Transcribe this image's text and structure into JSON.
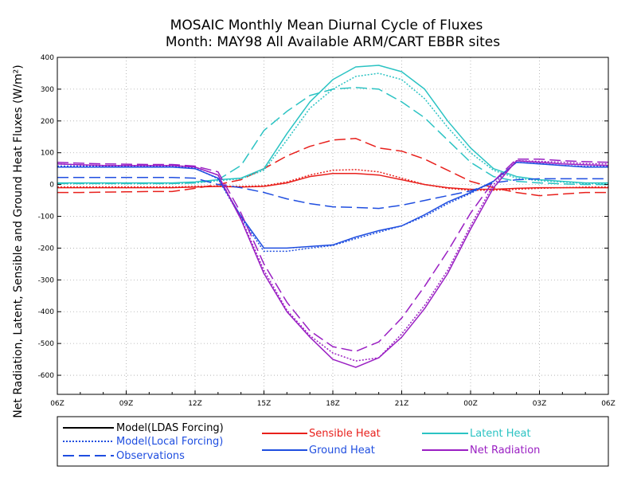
{
  "chart_data": {
    "type": "line",
    "title": "MOSAIC Monthly Mean Diurnal Cycle of Fluxes",
    "subtitle": "Month: MAY98 All Available ARM/CART EBBR sites",
    "ylabel": "Net Radiation, Latent, Sensible and Ground Heat Fluxes (W/m²)",
    "xlabel": "",
    "ylim": [
      -660,
      400
    ],
    "yticks": [
      400,
      300,
      200,
      100,
      0,
      -100,
      -200,
      -300,
      -400,
      -500,
      -600
    ],
    "xlim": [
      0,
      24
    ],
    "xticks": [
      0,
      3,
      6,
      9,
      12,
      15,
      18,
      21,
      24
    ],
    "xtick_labels": [
      "06Z",
      "09Z",
      "12Z",
      "15Z",
      "18Z",
      "21Z",
      "00Z",
      "03Z",
      "06Z"
    ],
    "grid": true,
    "x": [
      0,
      1,
      2,
      3,
      4,
      5,
      6,
      7,
      8,
      9,
      10,
      11,
      12,
      13,
      14,
      15,
      16,
      17,
      18,
      19,
      20,
      21,
      22,
      23,
      24
    ],
    "variables": [
      {
        "name": "Sensible Heat",
        "color": "#e8201c"
      },
      {
        "name": "Latent Heat",
        "color": "#2bc3c3"
      },
      {
        "name": "Ground Heat",
        "color": "#1f4ee0"
      },
      {
        "name": "Net Radiation",
        "color": "#9a1fc3"
      }
    ],
    "sources": [
      {
        "name": "Model(LDAS Forcing)",
        "style": "solid"
      },
      {
        "name": "Model(Local Forcing)",
        "style": "dotted"
      },
      {
        "name": "Observations",
        "style": "dashed"
      }
    ],
    "series": [
      {
        "variable": "Sensible Heat",
        "source": "Model(LDAS Forcing)",
        "values": [
          -10,
          -10,
          -10,
          -10,
          -10,
          -10,
          -8,
          -6,
          -8,
          -6,
          5,
          25,
          35,
          35,
          30,
          15,
          0,
          -10,
          -15,
          -15,
          -12,
          -10,
          -10,
          -10,
          -10
        ]
      },
      {
        "variable": "Sensible Heat",
        "source": "Model(Local Forcing)",
        "values": [
          -8,
          -8,
          -8,
          -8,
          -8,
          -8,
          -6,
          -5,
          -6,
          -4,
          8,
          30,
          45,
          47,
          40,
          20,
          0,
          -12,
          -18,
          -18,
          -15,
          -12,
          -10,
          -8,
          -8
        ]
      },
      {
        "variable": "Sensible Heat",
        "source": "Observations",
        "values": [
          -25,
          -25,
          -24,
          -23,
          -22,
          -22,
          -12,
          0,
          15,
          50,
          90,
          120,
          140,
          145,
          115,
          105,
          80,
          45,
          10,
          -10,
          -25,
          -35,
          -30,
          -25,
          -25
        ]
      },
      {
        "variable": "Latent Heat",
        "source": "Model(LDAS Forcing)",
        "values": [
          5,
          5,
          5,
          5,
          5,
          5,
          8,
          15,
          20,
          50,
          160,
          260,
          330,
          370,
          375,
          355,
          300,
          200,
          115,
          50,
          25,
          15,
          10,
          5,
          5
        ]
      },
      {
        "variable": "Latent Heat",
        "source": "Model(Local Forcing)",
        "values": [
          3,
          3,
          3,
          3,
          3,
          3,
          5,
          12,
          18,
          45,
          140,
          240,
          300,
          340,
          350,
          330,
          270,
          180,
          100,
          45,
          20,
          12,
          8,
          3,
          3
        ]
      },
      {
        "variable": "Latent Heat",
        "source": "Observations",
        "values": [
          3,
          3,
          3,
          3,
          3,
          3,
          5,
          15,
          60,
          170,
          230,
          280,
          300,
          305,
          300,
          260,
          210,
          140,
          70,
          25,
          10,
          5,
          2,
          0,
          0
        ]
      },
      {
        "variable": "Ground Heat",
        "source": "Model(LDAS Forcing)",
        "values": [
          55,
          55,
          55,
          55,
          55,
          55,
          50,
          20,
          -100,
          -200,
          -200,
          -195,
          -190,
          -165,
          -145,
          -130,
          -95,
          -55,
          -25,
          10,
          70,
          65,
          60,
          55,
          55
        ]
      },
      {
        "variable": "Ground Heat",
        "source": "Model(Local Forcing)",
        "values": [
          58,
          58,
          58,
          58,
          58,
          58,
          52,
          18,
          -105,
          -210,
          -210,
          -200,
          -192,
          -170,
          -150,
          -130,
          -100,
          -60,
          -28,
          10,
          70,
          66,
          60,
          57,
          57
        ]
      },
      {
        "variable": "Ground Heat",
        "source": "Observations",
        "values": [
          22,
          22,
          22,
          22,
          22,
          22,
          20,
          0,
          -10,
          -25,
          -45,
          -60,
          -70,
          -72,
          -75,
          -65,
          -50,
          -35,
          -20,
          5,
          15,
          18,
          18,
          18,
          18
        ]
      },
      {
        "variable": "Net Radiation",
        "source": "Model(LDAS Forcing)",
        "values": [
          65,
          62,
          60,
          60,
          60,
          60,
          55,
          30,
          -110,
          -280,
          -400,
          -480,
          -550,
          -575,
          -545,
          -480,
          -390,
          -280,
          -140,
          -10,
          75,
          70,
          65,
          62,
          60
        ]
      },
      {
        "variable": "Net Radiation",
        "source": "Model(Local Forcing)",
        "values": [
          65,
          62,
          60,
          60,
          60,
          60,
          55,
          30,
          -105,
          -270,
          -395,
          -475,
          -530,
          -555,
          -545,
          -470,
          -380,
          -270,
          -130,
          0,
          75,
          73,
          70,
          66,
          65
        ]
      },
      {
        "variable": "Net Radiation",
        "source": "Observations",
        "values": [
          70,
          67,
          65,
          64,
          63,
          63,
          58,
          40,
          -90,
          -250,
          -370,
          -460,
          -510,
          -525,
          -495,
          -420,
          -320,
          -210,
          -90,
          10,
          80,
          80,
          75,
          72,
          70
        ]
      }
    ]
  }
}
